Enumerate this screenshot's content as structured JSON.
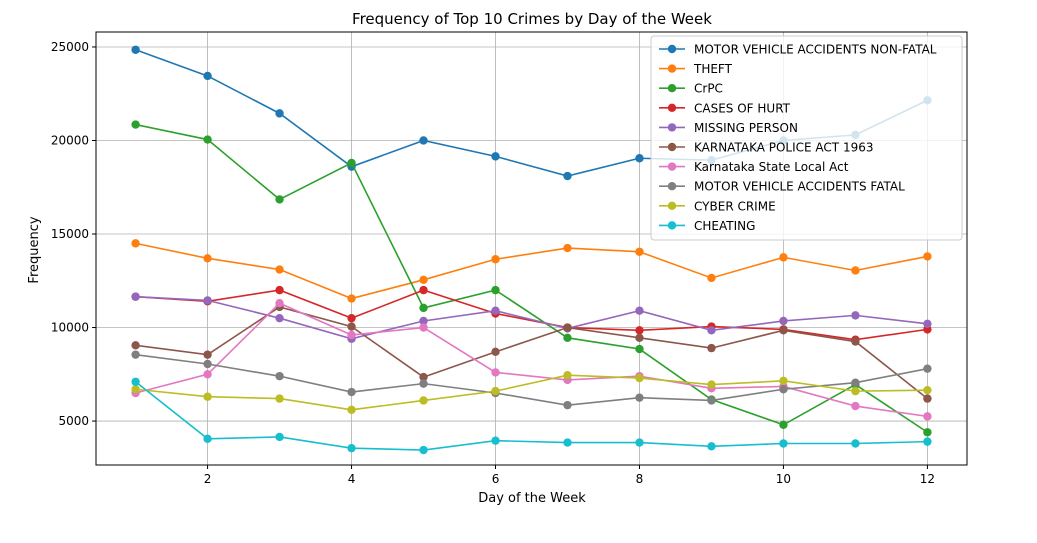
{
  "chart_data": {
    "type": "line",
    "title": "Frequency of Top 10 Crimes by Day of the Week",
    "xlabel": "Day of the Week",
    "ylabel": "Frequency",
    "xlim": [
      0.45,
      12.55
    ],
    "ylim": [
      2650,
      25800
    ],
    "xticks": [
      2,
      4,
      6,
      8,
      10,
      12
    ],
    "yticks": [
      5000,
      10000,
      15000,
      20000,
      25000
    ],
    "grid": true,
    "legend_position": "top-right",
    "x": [
      1,
      2,
      3,
      4,
      5,
      6,
      7,
      8,
      9,
      10,
      11,
      12
    ],
    "series": [
      {
        "name": "MOTOR VEHICLE ACCIDENTS NON-FATAL",
        "color": "#1f77b4",
        "values": [
          24850,
          23450,
          21450,
          18600,
          20000,
          19150,
          18100,
          19050,
          18950,
          20000,
          20300,
          22150
        ]
      },
      {
        "name": "THEFT",
        "color": "#ff7f0e",
        "values": [
          14500,
          13700,
          13100,
          11550,
          12550,
          13650,
          14250,
          14050,
          12650,
          13750,
          13050,
          13800
        ]
      },
      {
        "name": "CrPC",
        "color": "#2ca02c",
        "values": [
          20850,
          20050,
          16850,
          18800,
          11050,
          12000,
          9450,
          8850,
          6150,
          4800,
          6950,
          4400
        ]
      },
      {
        "name": "CASES OF HURT",
        "color": "#d62728",
        "values": [
          11650,
          11400,
          12000,
          10500,
          12000,
          10750,
          10000,
          9850,
          10050,
          9900,
          9350,
          9900
        ]
      },
      {
        "name": "MISSING PERSON",
        "color": "#9467bd",
        "values": [
          11650,
          11450,
          10500,
          9400,
          10350,
          10900,
          9950,
          10900,
          9850,
          10350,
          10650,
          10200
        ]
      },
      {
        "name": "KARNATAKA POLICE ACT 1963",
        "color": "#8c564b",
        "values": [
          9050,
          8550,
          11100,
          10050,
          7350,
          8700,
          10000,
          9450,
          8900,
          9850,
          9250,
          6200
        ]
      },
      {
        "name": "Karnataka State Local Act",
        "color": "#e377c2",
        "values": [
          6500,
          7500,
          11300,
          9600,
          10000,
          7600,
          7200,
          7400,
          6750,
          6850,
          5800,
          5250
        ]
      },
      {
        "name": "MOTOR VEHICLE ACCIDENTS FATAL",
        "color": "#7f7f7f",
        "values": [
          8550,
          8050,
          7400,
          6550,
          7000,
          6500,
          5850,
          6250,
          6100,
          6700,
          7050,
          7800
        ]
      },
      {
        "name": " CYBER CRIME",
        "color": "#bcbd22",
        "values": [
          6700,
          6300,
          6200,
          5600,
          6100,
          6600,
          7450,
          7300,
          6950,
          7150,
          6600,
          6650
        ]
      },
      {
        "name": "CHEATING",
        "color": "#17becf",
        "values": [
          7100,
          4050,
          4150,
          3550,
          3450,
          3950,
          3850,
          3850,
          3650,
          3800,
          3800,
          3900
        ]
      }
    ]
  }
}
